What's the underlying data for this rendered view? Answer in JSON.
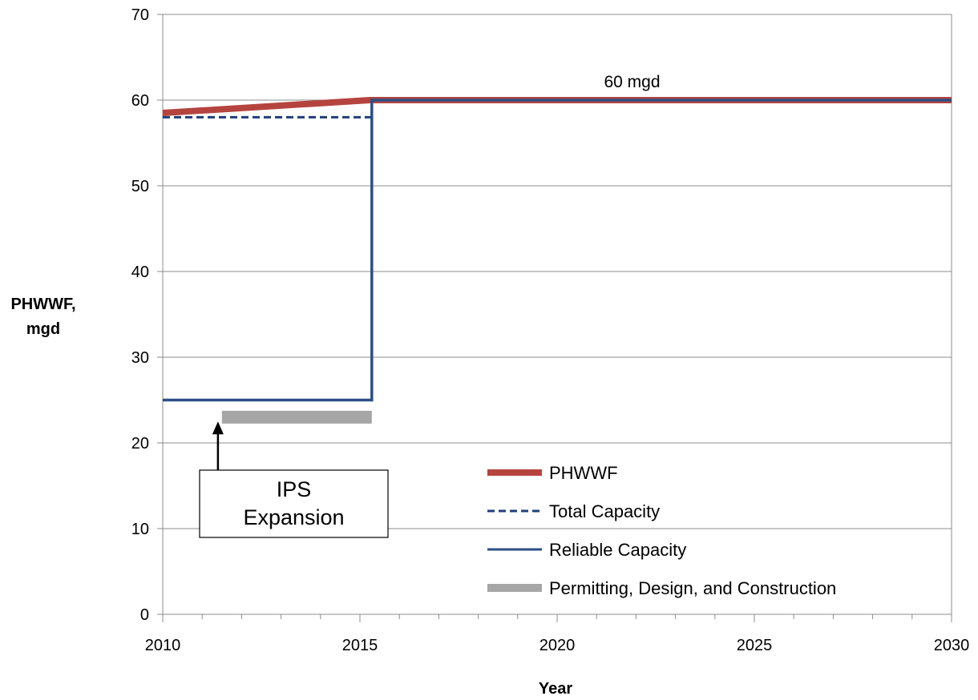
{
  "chart_data": {
    "type": "line",
    "title": "",
    "xlabel": "Year",
    "ylabel_lines": [
      "PHWWF,",
      "mgd"
    ],
    "xlim": [
      2010,
      2030
    ],
    "ylim": [
      0,
      70
    ],
    "x_ticks": [
      2010,
      2015,
      2020,
      2025,
      2030
    ],
    "x_minor_step": 1,
    "y_ticks": [
      0,
      10,
      20,
      30,
      40,
      50,
      60,
      70
    ],
    "grid": "horizontal",
    "legend_position": "bottom-right",
    "series": [
      {
        "name": "PHWWF",
        "color": "#b5443f",
        "style": "thick",
        "points": [
          [
            2010,
            58.5
          ],
          [
            2015.25,
            60
          ],
          [
            2030,
            60
          ]
        ]
      },
      {
        "name": "Total Capacity",
        "color": "#1f3f7a",
        "style": "dashed",
        "points": [
          [
            2010,
            58
          ],
          [
            2015.3,
            58
          ]
        ]
      },
      {
        "name": "Reliable Capacity",
        "color": "#2c4f86",
        "style": "solid",
        "points": [
          [
            2010,
            25
          ],
          [
            2015.3,
            25
          ],
          [
            2015.3,
            60
          ],
          [
            2030,
            60
          ]
        ]
      },
      {
        "name": "Permitting, Design, and Construction",
        "color": "#a6a6a6",
        "style": "bar",
        "points": [
          [
            2011.5,
            23
          ],
          [
            2015.3,
            23
          ]
        ]
      }
    ],
    "annotations": [
      {
        "text": "60 mgd",
        "x": 2021.9,
        "y": 61.5
      }
    ],
    "callout": {
      "lines": [
        "IPS",
        "Expansion"
      ],
      "arrow_target": [
        2011.4,
        22.5
      ]
    }
  }
}
